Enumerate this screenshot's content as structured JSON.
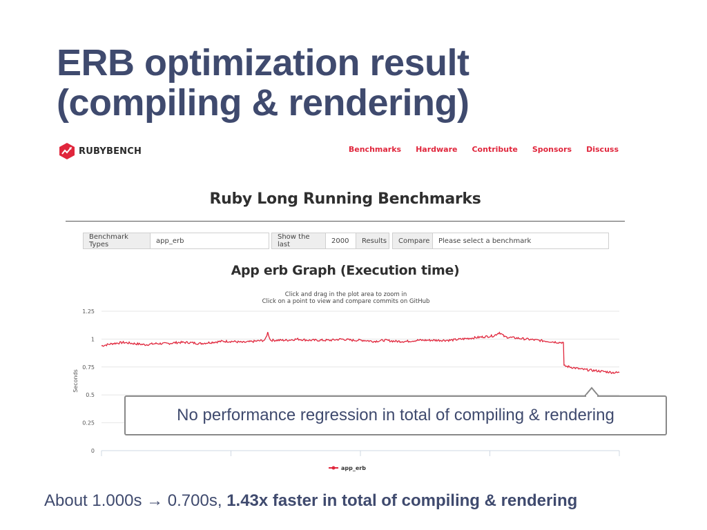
{
  "slide": {
    "title_line1": "ERB optimization result",
    "title_line2": "(compiling & rendering)"
  },
  "site": {
    "logo_text": "RUBYBENCH",
    "nav": [
      "Benchmarks",
      "Hardware",
      "Contribute",
      "Sponsors",
      "Discuss"
    ],
    "brand_color": "#e0263c"
  },
  "page": {
    "heading": "Ruby Long Running Benchmarks"
  },
  "controls": {
    "benchmark_types_label": "Benchmark Types",
    "benchmark_types_value": "app_erb",
    "show_last_label": "Show the last",
    "show_last_value": "2000",
    "results_label": "Results",
    "compare_label": "Compare",
    "compare_placeholder": "Please select a benchmark"
  },
  "chart_data": {
    "type": "line",
    "title": "App erb Graph (Execution time)",
    "subtitle_line1": "Click and drag in the plot area to zoom in",
    "subtitle_line2": "Click on a point to view and compare commits on GitHub",
    "ylabel": "Seconds",
    "ylim": [
      0,
      1.25
    ],
    "yticks": [
      "0",
      "0.25",
      "0.5",
      "0.75",
      "1",
      "1.25"
    ],
    "grid": true,
    "legend_placement": "bottom-center",
    "series": [
      {
        "name": "app_erb",
        "color": "#e0263c",
        "points": [
          [
            0,
            0.94
          ],
          [
            40,
            0.96
          ],
          [
            80,
            0.97
          ],
          [
            120,
            0.96
          ],
          [
            160,
            0.95
          ],
          [
            200,
            0.96
          ],
          [
            240,
            0.96
          ],
          [
            280,
            0.97
          ],
          [
            320,
            0.97
          ],
          [
            360,
            0.96
          ],
          [
            400,
            0.97
          ],
          [
            440,
            0.98
          ],
          [
            480,
            0.98
          ],
          [
            520,
            0.97
          ],
          [
            560,
            0.98
          ],
          [
            600,
            0.99
          ],
          [
            610,
            1.06
          ],
          [
            620,
            0.99
          ],
          [
            680,
            0.99
          ],
          [
            720,
            1.0
          ],
          [
            760,
            0.99
          ],
          [
            800,
            0.99
          ],
          [
            840,
            0.99
          ],
          [
            880,
            1.0
          ],
          [
            920,
            0.99
          ],
          [
            960,
            0.99
          ],
          [
            1000,
            0.98
          ],
          [
            1040,
            0.99
          ],
          [
            1080,
            0.98
          ],
          [
            1120,
            0.98
          ],
          [
            1160,
            0.99
          ],
          [
            1200,
            0.99
          ],
          [
            1240,
            0.99
          ],
          [
            1280,
            0.99
          ],
          [
            1320,
            1.0
          ],
          [
            1360,
            1.01
          ],
          [
            1400,
            1.02
          ],
          [
            1440,
            1.03
          ],
          [
            1460,
            1.06
          ],
          [
            1480,
            1.02
          ],
          [
            1520,
            1.01
          ],
          [
            1560,
            1.0
          ],
          [
            1600,
            0.99
          ],
          [
            1640,
            0.98
          ],
          [
            1680,
            0.97
          ],
          [
            1695,
            0.97
          ],
          [
            1697,
            0.76
          ],
          [
            1720,
            0.75
          ],
          [
            1760,
            0.73
          ],
          [
            1800,
            0.72
          ],
          [
            1840,
            0.71
          ],
          [
            1880,
            0.7
          ],
          [
            1900,
            0.7
          ]
        ]
      }
    ]
  },
  "callout": {
    "text": "No performance regression in total of compiling & rendering"
  },
  "footer": {
    "prefix": "About 1.000s → 0.700s, ",
    "bold": "1.43x faster in total of compiling & rendering"
  }
}
